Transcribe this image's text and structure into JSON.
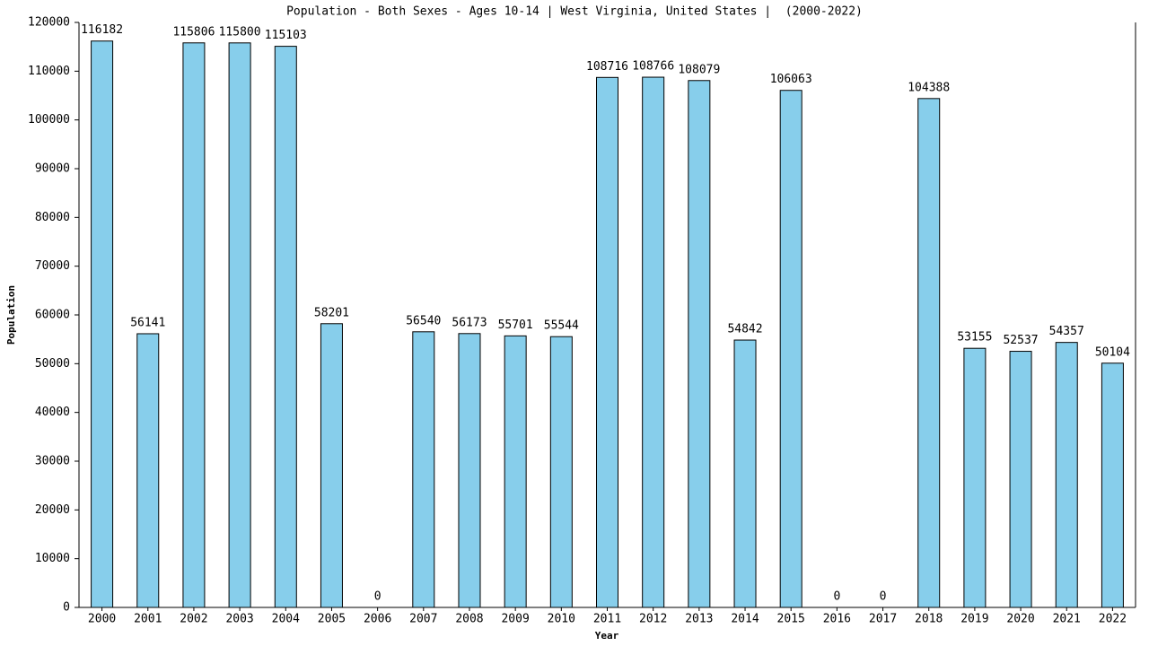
{
  "chart_data": {
    "type": "bar",
    "title": "Population - Both Sexes - Ages 10-14 | West Virginia, United States |  (2000-2022)",
    "x_label": "Year",
    "y_label": "Population",
    "categories": [
      "2000",
      "2001",
      "2002",
      "2003",
      "2004",
      "2005",
      "2006",
      "2007",
      "2008",
      "2009",
      "2010",
      "2011",
      "2012",
      "2013",
      "2014",
      "2015",
      "2016",
      "2017",
      "2018",
      "2019",
      "2020",
      "2021",
      "2022"
    ],
    "values": [
      116182,
      56141,
      115806,
      115800,
      115103,
      58201,
      0,
      56540,
      56173,
      55701,
      55544,
      108716,
      108766,
      108079,
      54842,
      106063,
      0,
      0,
      104388,
      53155,
      52537,
      54357,
      50104
    ],
    "color": "#87ceeb",
    "ylim": [
      0,
      120000
    ],
    "yticks": [
      0,
      10000,
      20000,
      30000,
      40000,
      50000,
      60000,
      70000,
      80000,
      90000,
      100000,
      110000,
      120000
    ],
    "grid": false
  }
}
